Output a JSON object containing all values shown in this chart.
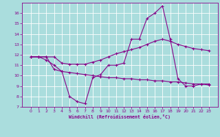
{
  "xlabel": "Windchill (Refroidissement éolien,°C)",
  "x": [
    0,
    1,
    2,
    3,
    4,
    5,
    6,
    7,
    8,
    9,
    10,
    11,
    12,
    13,
    14,
    15,
    16,
    17,
    18,
    19,
    20,
    21,
    22,
    23
  ],
  "series1": [
    11.8,
    11.8,
    11.8,
    10.6,
    10.4,
    8.0,
    7.5,
    7.3,
    9.8,
    10.1,
    11.0,
    11.0,
    11.2,
    13.5,
    13.5,
    15.5,
    16.0,
    16.7,
    13.5,
    9.7,
    9.0,
    9.0,
    9.2,
    9.2
  ],
  "series2": [
    11.8,
    11.8,
    11.8,
    11.8,
    11.2,
    11.1,
    11.1,
    11.1,
    11.3,
    11.5,
    11.8,
    12.1,
    12.3,
    12.5,
    12.7,
    13.0,
    13.3,
    13.5,
    13.3,
    13.0,
    12.8,
    12.6,
    12.5,
    12.4
  ],
  "series3": [
    11.8,
    11.8,
    11.5,
    11.0,
    10.4,
    10.3,
    10.2,
    10.1,
    10.0,
    9.9,
    9.8,
    9.8,
    9.7,
    9.7,
    9.6,
    9.6,
    9.5,
    9.5,
    9.4,
    9.4,
    9.3,
    9.2,
    9.2,
    9.1
  ],
  "line_color": "#880088",
  "bg_color": "#aadddd",
  "grid_color": "#cceeee",
  "ylim": [
    7,
    17
  ],
  "yticks": [
    7,
    8,
    9,
    10,
    11,
    12,
    13,
    14,
    15,
    16
  ],
  "xticks": [
    0,
    1,
    2,
    3,
    4,
    5,
    6,
    7,
    8,
    9,
    10,
    11,
    12,
    13,
    14,
    15,
    16,
    17,
    18,
    19,
    20,
    21,
    22,
    23
  ],
  "marker": "+",
  "markersize": 3,
  "linewidth": 0.8,
  "tick_fontsize": 4.5,
  "xlabel_fontsize": 4.8
}
